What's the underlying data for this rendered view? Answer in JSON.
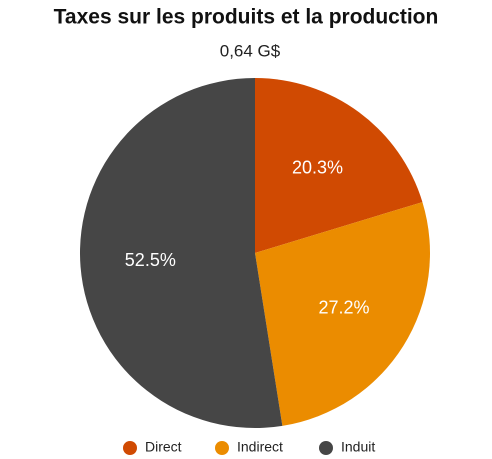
{
  "chart_data": {
    "type": "pie",
    "title": "Taxes sur les produits et la production",
    "subtitle": "0,64 G$",
    "categories": [
      "Direct",
      "Indirect",
      "Induit"
    ],
    "values": [
      20.3,
      27.2,
      52.5
    ],
    "value_labels": [
      "20.3%",
      "27.2%",
      "52.5%"
    ],
    "colors": [
      "#d04a02",
      "#eb8c00",
      "#464646"
    ],
    "legend": "bottom"
  }
}
